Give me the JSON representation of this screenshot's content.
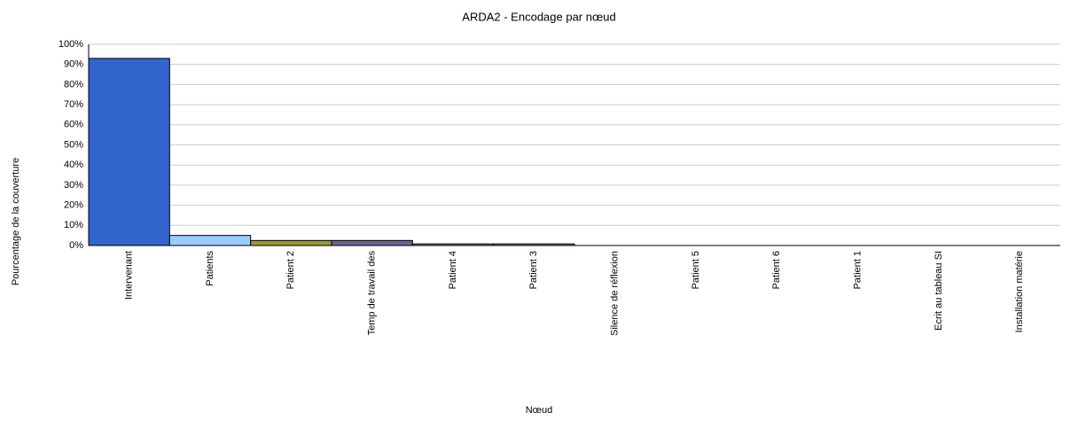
{
  "chart_data": {
    "type": "bar",
    "title": "ARDA2 - Encodage par nœud",
    "xlabel": "Nœud",
    "ylabel": "Pourcentage de la couverture",
    "categories": [
      "Intervenant",
      "Patients",
      "Patient 2",
      "Temp de travail des",
      "Patient 4",
      "Patient 3",
      "Silence de réflexion",
      "Patient 5",
      "Patient 6",
      "Patient 1",
      "Ecrit au tableau SI",
      "Installation matérie"
    ],
    "values": [
      93,
      5,
      2.5,
      2.5,
      0.8,
      0.8,
      0,
      0,
      0,
      0,
      0,
      0
    ],
    "colors": [
      "#3366cc",
      "#99ccff",
      "#999933",
      "#666699",
      "#669966",
      "#669966",
      "#cc6633",
      "#cc3333",
      "#66cccc",
      "#cccc66",
      "#9966cc",
      "#cc9966"
    ],
    "ylim": [
      0,
      100
    ],
    "yticks": [
      {
        "value": 0,
        "label": "0%"
      },
      {
        "value": 10,
        "label": "10%"
      },
      {
        "value": 20,
        "label": "20%"
      },
      {
        "value": 30,
        "label": "30%"
      },
      {
        "value": 40,
        "label": "40%"
      },
      {
        "value": 50,
        "label": "50%"
      },
      {
        "value": 60,
        "label": "60%"
      },
      {
        "value": 70,
        "label": "70%"
      },
      {
        "value": 80,
        "label": "80%"
      },
      {
        "value": 90,
        "label": "90%"
      },
      {
        "value": 100,
        "label": "100%"
      }
    ],
    "grid": true
  }
}
